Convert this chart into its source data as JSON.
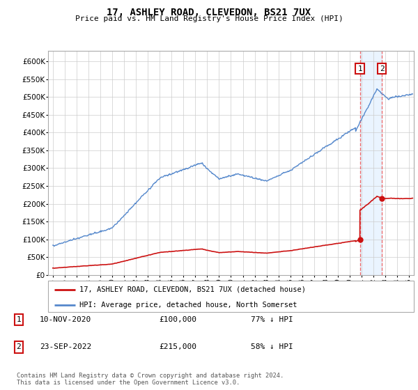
{
  "title": "17, ASHLEY ROAD, CLEVEDON, BS21 7UX",
  "subtitle": "Price paid vs. HM Land Registry's House Price Index (HPI)",
  "hpi_color": "#5588cc",
  "price_color": "#cc1111",
  "marker_color": "#cc1111",
  "vline_color": "#ee5555",
  "shade_color": "#ddeeff",
  "transaction1": {
    "date_label": "10-NOV-2020",
    "price": 100000,
    "hpi_pct": "77% ↓ HPI",
    "year": 2020.86
  },
  "transaction2": {
    "date_label": "23-SEP-2022",
    "price": 215000,
    "hpi_pct": "58% ↓ HPI",
    "year": 2022.72
  },
  "legend_label_red": "17, ASHLEY ROAD, CLEVEDON, BS21 7UX (detached house)",
  "legend_label_blue": "HPI: Average price, detached house, North Somerset",
  "footnote": "Contains HM Land Registry data © Crown copyright and database right 2024.\nThis data is licensed under the Open Government Licence v3.0.",
  "ylim": [
    0,
    630000
  ],
  "yticks": [
    0,
    50000,
    100000,
    150000,
    200000,
    250000,
    300000,
    350000,
    400000,
    450000,
    500000,
    550000,
    600000
  ],
  "ytick_labels": [
    "£0",
    "£50K",
    "£100K",
    "£150K",
    "£200K",
    "£250K",
    "£300K",
    "£350K",
    "£400K",
    "£450K",
    "£500K",
    "£550K",
    "£600K"
  ],
  "xlim_start": 1994.6,
  "xlim_end": 2025.4,
  "xtick_years": [
    1995,
    1996,
    1997,
    1998,
    1999,
    2000,
    2001,
    2002,
    2003,
    2004,
    2005,
    2006,
    2007,
    2008,
    2009,
    2010,
    2011,
    2012,
    2013,
    2014,
    2015,
    2016,
    2017,
    2018,
    2019,
    2020,
    2021,
    2022,
    2023,
    2024,
    2025
  ]
}
